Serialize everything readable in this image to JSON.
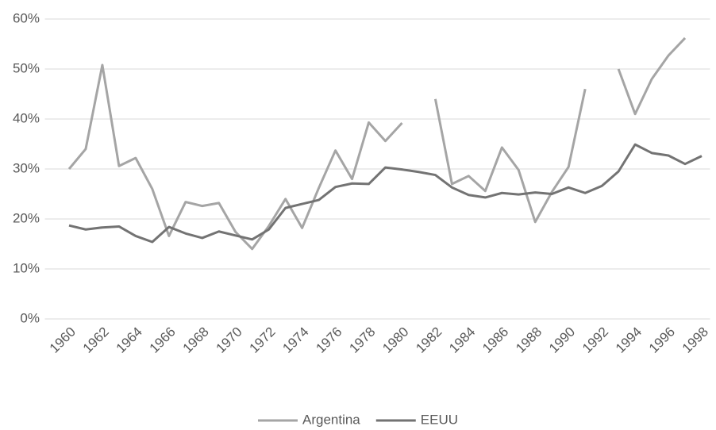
{
  "chart_data": {
    "type": "line",
    "categories": [
      "1960",
      null,
      "1962",
      null,
      "1964",
      null,
      "1966",
      null,
      "1968",
      null,
      "1970",
      null,
      "1972",
      null,
      "1974",
      null,
      "1976",
      null,
      "1978",
      null,
      "1980",
      null,
      "1982",
      null,
      "1984",
      null,
      "1986",
      null,
      "1988",
      null,
      "1990",
      null,
      "1992",
      null,
      "1994",
      null,
      "1996",
      null,
      "1998"
    ],
    "series": [
      {
        "name": "Argentina",
        "color": "#a5a5a5",
        "values": [
          30,
          34,
          50.8,
          30.6,
          32.2,
          26,
          16.6,
          23.4,
          22.6,
          23.2,
          17.4,
          14,
          18.6,
          24,
          18.2,
          26.2,
          33.7,
          28,
          39.3,
          35.6,
          39.2,
          null,
          44,
          27,
          28.6,
          25.6,
          34.3,
          29.8,
          19.4,
          25.4,
          30.4,
          46,
          null,
          50,
          41,
          48,
          52.7,
          56.2,
          null
        ]
      },
      {
        "name": "EEUU",
        "color": "#737373",
        "values": [
          18.7,
          17.9,
          18.3,
          18.5,
          16.6,
          15.4,
          18.4,
          17.1,
          16.2,
          17.5,
          16.7,
          15.9,
          17.9,
          22.2,
          23,
          23.8,
          26.4,
          27.1,
          27,
          30.3,
          29.9,
          29.4,
          28.8,
          26.3,
          24.8,
          24.3,
          25.2,
          24.9,
          25.3,
          25,
          26.3,
          25.2,
          26.6,
          29.5,
          34.9,
          33.2,
          32.7,
          31,
          32.6
        ]
      }
    ],
    "ylim": [
      0,
      60
    ],
    "yticks": [
      {
        "value": 0,
        "label": "0%"
      },
      {
        "value": 10,
        "label": "10%"
      },
      {
        "value": 20,
        "label": "20%"
      },
      {
        "value": 30,
        "label": "30%"
      },
      {
        "value": 40,
        "label": "40%"
      },
      {
        "value": 50,
        "label": "50%"
      },
      {
        "value": 60,
        "label": "60%"
      }
    ],
    "grid": true,
    "legend": "bottom"
  }
}
